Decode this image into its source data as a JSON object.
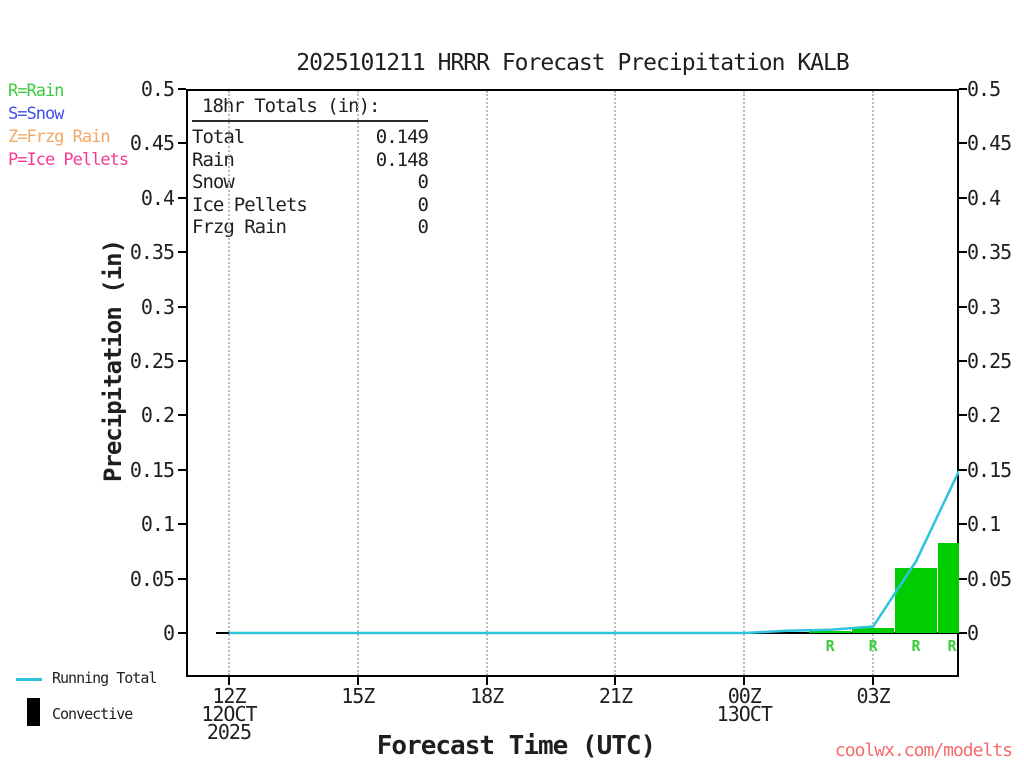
{
  "title": "2025101211 HRRR Forecast Precipitation KALB",
  "precip_type_legend": [
    {
      "label": "R=Rain",
      "color": "#3ecc3e"
    },
    {
      "label": "S=Snow",
      "color": "#4050e8"
    },
    {
      "label": "Z=Frzg Rain",
      "color": "#f2a763"
    },
    {
      "label": "P=Ice Pellets",
      "color": "#f53a96"
    }
  ],
  "totals_box": {
    "heading": "18hr Totals (in):",
    "rows": [
      {
        "label": "Total",
        "value": "0.149"
      },
      {
        "label": "Rain",
        "value": "0.148"
      },
      {
        "label": "Snow",
        "value": "0"
      },
      {
        "label": "Ice Pellets",
        "value": "0"
      },
      {
        "label": "Frzg Rain",
        "value": "0"
      }
    ]
  },
  "chart_data": {
    "type": "bar+line",
    "title": "2025101211 HRRR Forecast Precipitation KALB",
    "xlabel": "Forecast Time (UTC)",
    "ylabel": "Precipitation (in)",
    "ylim": [
      0,
      0.5
    ],
    "x_range_hours_from_run": [
      0,
      18
    ],
    "run_start": "11Z 12OCT 2025",
    "grid": "vertical dotted at 3-hour ticks",
    "yticks": [
      {
        "v": 0,
        "label": "0"
      },
      {
        "v": 0.05,
        "label": "0.05"
      },
      {
        "v": 0.1,
        "label": "0.1"
      },
      {
        "v": 0.15,
        "label": "0.15"
      },
      {
        "v": 0.2,
        "label": "0.2"
      },
      {
        "v": 0.25,
        "label": "0.25"
      },
      {
        "v": 0.3,
        "label": "0.3"
      },
      {
        "v": 0.35,
        "label": "0.35"
      },
      {
        "v": 0.4,
        "label": "0.4"
      },
      {
        "v": 0.45,
        "label": "0.45"
      },
      {
        "v": 0.5,
        "label": "0.5"
      }
    ],
    "yticks_mirrored_right": true,
    "xticks": [
      {
        "hour": 1,
        "label": "12Z",
        "sub": [
          "12OCT",
          "2025"
        ]
      },
      {
        "hour": 4,
        "label": "15Z",
        "sub": []
      },
      {
        "hour": 7,
        "label": "18Z",
        "sub": []
      },
      {
        "hour": 10,
        "label": "21Z",
        "sub": []
      },
      {
        "hour": 13,
        "label": "00Z",
        "sub": [
          "13OCT"
        ]
      },
      {
        "hour": 16,
        "label": "03Z",
        "sub": []
      }
    ],
    "line_color": "#2ec4dc",
    "bar_color": "#00cc00",
    "marker_color": "#3ecc3e",
    "running_total": {
      "name": "Running Total",
      "points": [
        {
          "h": 1,
          "utc": "12Z",
          "v": 0
        },
        {
          "h": 2,
          "utc": "13Z",
          "v": 0
        },
        {
          "h": 3,
          "utc": "14Z",
          "v": 0
        },
        {
          "h": 4,
          "utc": "15Z",
          "v": 0
        },
        {
          "h": 5,
          "utc": "16Z",
          "v": 0
        },
        {
          "h": 6,
          "utc": "17Z",
          "v": 0
        },
        {
          "h": 7,
          "utc": "18Z",
          "v": 0
        },
        {
          "h": 8,
          "utc": "19Z",
          "v": 0
        },
        {
          "h": 9,
          "utc": "20Z",
          "v": 0
        },
        {
          "h": 10,
          "utc": "21Z",
          "v": 0
        },
        {
          "h": 11,
          "utc": "22Z",
          "v": 0
        },
        {
          "h": 12,
          "utc": "23Z",
          "v": 0
        },
        {
          "h": 13,
          "utc": "00Z",
          "v": 0
        },
        {
          "h": 14,
          "utc": "01Z",
          "v": 0.002
        },
        {
          "h": 15,
          "utc": "02Z",
          "v": 0.003
        },
        {
          "h": 16,
          "utc": "03Z",
          "v": 0.006
        },
        {
          "h": 17,
          "utc": "04Z",
          "v": 0.066
        },
        {
          "h": 18,
          "utc": "05Z",
          "v": 0.149
        }
      ]
    },
    "bars": [
      {
        "h": 15,
        "utc": "02Z",
        "v": 0.002,
        "type": "R"
      },
      {
        "h": 16,
        "utc": "03Z",
        "v": 0.005,
        "type": "R"
      },
      {
        "h": 17,
        "utc": "04Z",
        "v": 0.06,
        "type": "R"
      },
      {
        "h": 18,
        "utc": "05Z",
        "v": 0.083,
        "type": "R"
      }
    ]
  },
  "bottom_legend": {
    "running_total_label": "Running Total",
    "running_total_color": "#2ec4dc",
    "convective_label": "Convective",
    "convective_color": "#000000"
  },
  "watermark": {
    "text": "coolwx.com/modelts",
    "color": "#f56b6b"
  }
}
